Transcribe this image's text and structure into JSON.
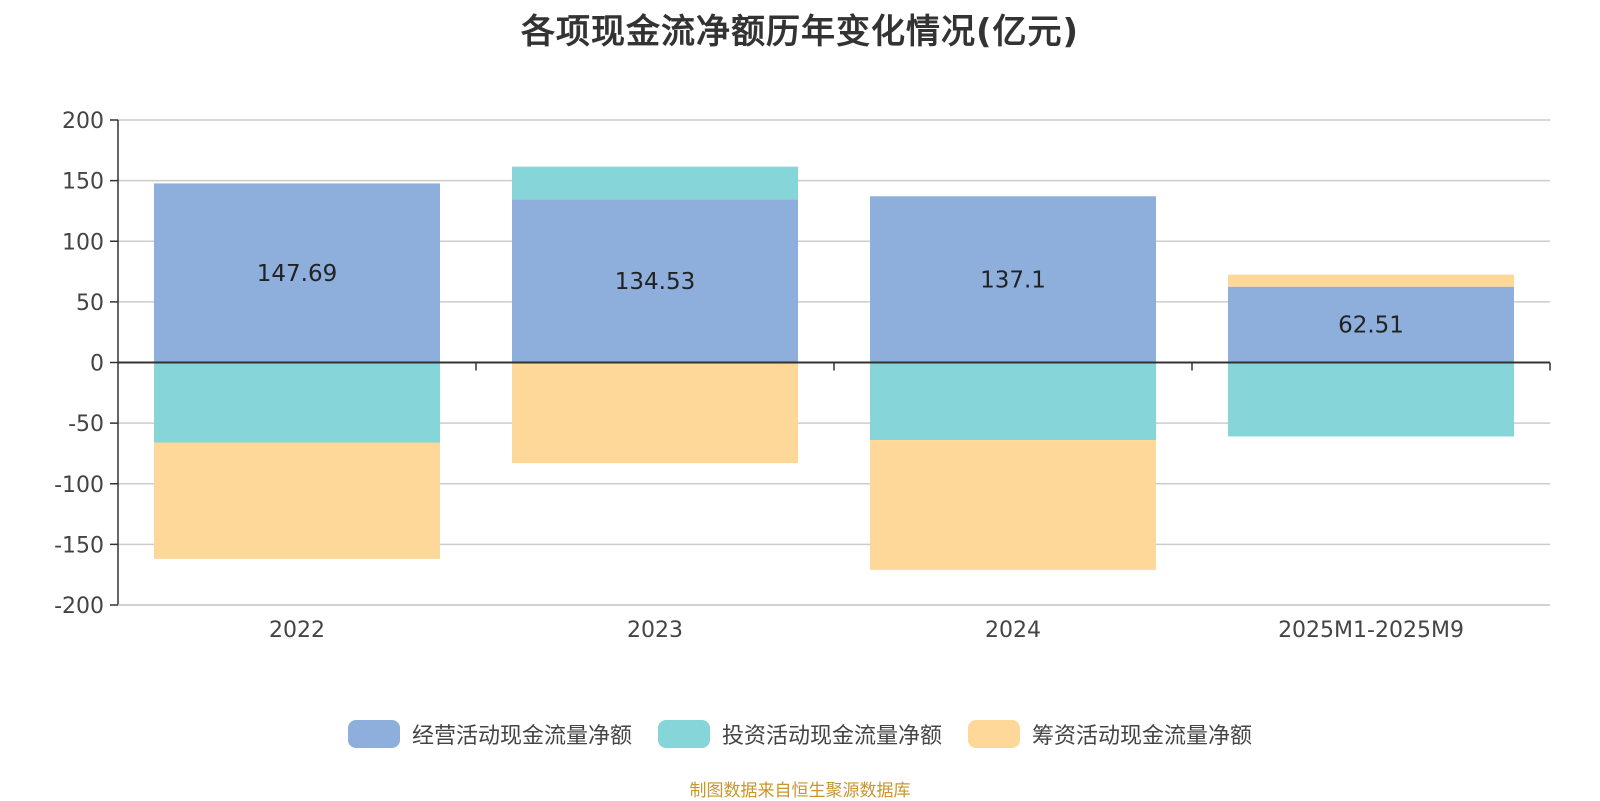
{
  "title": "各项现金流净额历年变化情况(亿元)",
  "source": "制图数据来自恒生聚源数据库",
  "chart_data": {
    "type": "bar",
    "stacked": true,
    "title": "各项现金流净额历年变化情况(亿元)",
    "categories": [
      "2022",
      "2023",
      "2024",
      "2025M1-2025M9"
    ],
    "ylim": [
      -200,
      200
    ],
    "yticks": [
      200,
      150,
      100,
      50,
      0,
      -50,
      -100,
      -150,
      -200
    ],
    "grid": true,
    "legend_position": "bottom",
    "series": [
      {
        "name": "经营活动现金流量净额",
        "color": "#8eaedb",
        "values": [
          147.69,
          134.53,
          137.1,
          62.51
        ],
        "labels": [
          "147.69",
          "134.53",
          "137.1",
          "62.51"
        ]
      },
      {
        "name": "投资活动现金流量净额",
        "color": "#86d5d8",
        "values": [
          -66,
          27,
          -64,
          -61
        ]
      },
      {
        "name": "筹资活动现金流量净额",
        "color": "#fdd898",
        "values": [
          -96,
          -83,
          -107,
          10
        ]
      }
    ]
  }
}
